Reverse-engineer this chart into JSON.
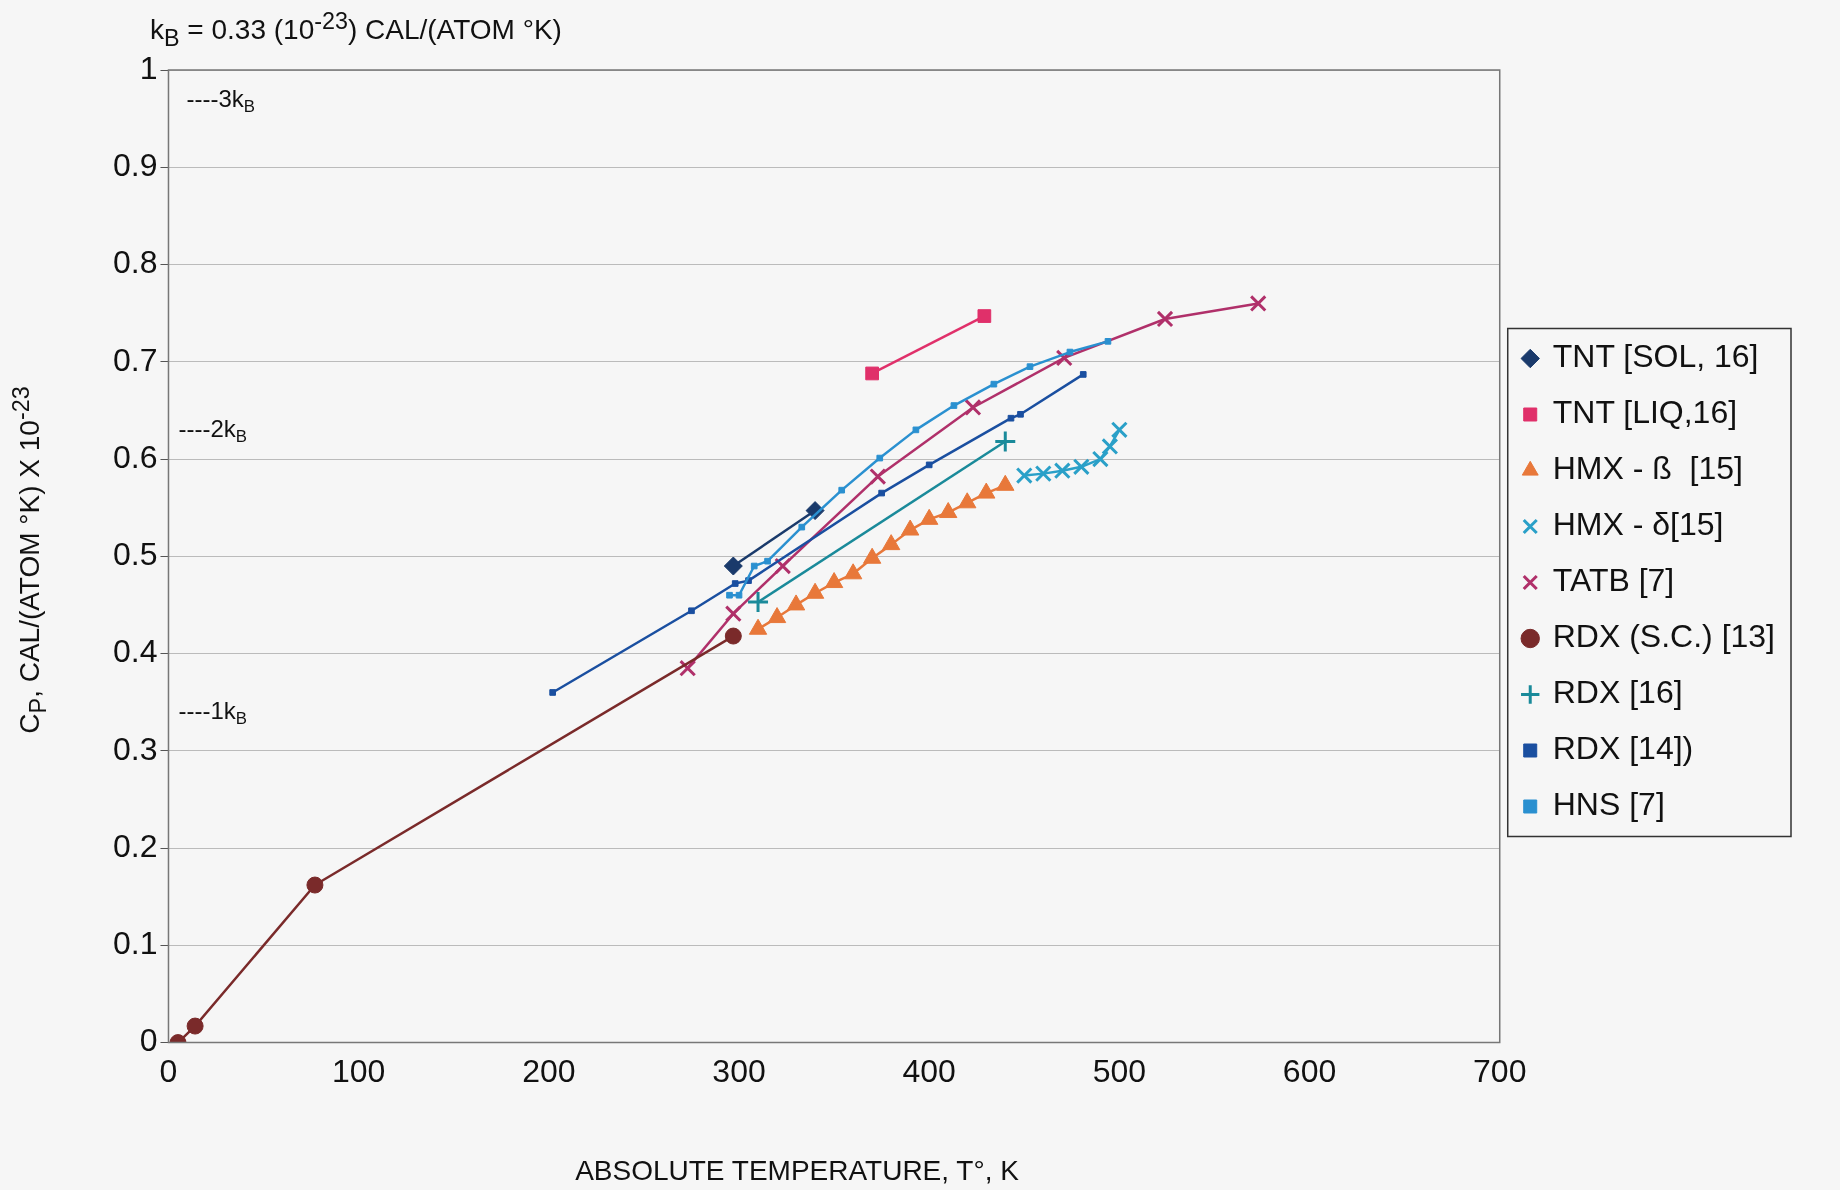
{
  "chart_data": {
    "type": "line",
    "title": "k$_{B}$ = 0.33 (10$^{-23}$) CAL/(ATOM °K)",
    "xlabel": "ABSOLUTE TEMPERATURE, T°, K",
    "ylabel": "C$_{P}$, CAL/(ATOM °K) X 10$^{-23}$",
    "xlim": [
      0,
      700
    ],
    "xticks": [
      0,
      100,
      200,
      300,
      400,
      500,
      600,
      700
    ],
    "ylim": [
      0,
      1
    ],
    "yticks": [
      0,
      0.1,
      0.2,
      0.3,
      0.4,
      0.5,
      0.6,
      0.7,
      0.8,
      0.9,
      1
    ],
    "grid": "y",
    "legend": "right",
    "annotations": [
      "----3k$_{B}$",
      "----2k$_{B}$",
      "----1k$_{B}$"
    ],
    "series": [
      {
        "name": "TNT [SOL, 16]",
        "color": "#1a3a6b",
        "marker": "diamond",
        "x": [
          297,
          340
        ],
        "values": [
          0.49,
          0.547
        ]
      },
      {
        "name": "TNT [LIQ,16]",
        "color": "#e0306a",
        "marker": "square",
        "x": [
          370,
          429
        ],
        "values": [
          0.688,
          0.747
        ]
      },
      {
        "name": "HMX - ß  [15]",
        "color": "#e8783a",
        "marker": "triangle",
        "x": [
          310,
          320,
          330,
          340,
          350,
          360,
          370,
          380,
          390,
          400,
          410,
          420,
          430,
          440
        ],
        "values": [
          0.425,
          0.437,
          0.45,
          0.462,
          0.473,
          0.482,
          0.498,
          0.512,
          0.527,
          0.538,
          0.545,
          0.555,
          0.565,
          0.573
        ]
      },
      {
        "name": "HMX - δ[15]",
        "color": "#2aa0c8",
        "marker": "cross",
        "x": [
          450,
          460,
          470,
          480,
          490,
          495,
          500
        ],
        "values": [
          0.583,
          0.585,
          0.588,
          0.592,
          0.6,
          0.613,
          0.63
        ]
      },
      {
        "name": "TATB [7]",
        "color": "#b0306a",
        "marker": "cross",
        "x": [
          273,
          297,
          323,
          373,
          423,
          471,
          524,
          573
        ],
        "values": [
          0.385,
          0.441,
          0.49,
          0.582,
          0.653,
          0.704,
          0.744,
          0.76
        ]
      },
      {
        "name": "RDX (S.C.) [13]",
        "color": "#7a2a2a",
        "marker": "circle",
        "x": [
          5,
          14,
          77,
          297
        ],
        "values": [
          0,
          0.017,
          0.162,
          0.418
        ]
      },
      {
        "name": "RDX [16]",
        "color": "#1a8a9a",
        "marker": "plus",
        "x": [
          310,
          440
        ],
        "values": [
          0.453,
          0.618
        ]
      },
      {
        "name": "RDX [14])",
        "color": "#1a4fa0",
        "marker": "square",
        "x": [
          202,
          275,
          298,
          305,
          375,
          400,
          443,
          448,
          481
        ],
        "values": [
          0.36,
          0.444,
          0.472,
          0.475,
          0.565,
          0.594,
          0.642,
          0.646,
          0.687
        ]
      },
      {
        "name": "HNS [7]",
        "color": "#2a90d0",
        "marker": "square",
        "x": [
          295,
          300,
          308,
          315,
          333,
          354,
          374,
          393,
          413,
          434,
          453,
          474,
          494
        ],
        "values": [
          0.46,
          0.46,
          0.49,
          0.495,
          0.53,
          0.568,
          0.601,
          0.63,
          0.655,
          0.677,
          0.695,
          0.71,
          0.721
        ]
      }
    ]
  }
}
